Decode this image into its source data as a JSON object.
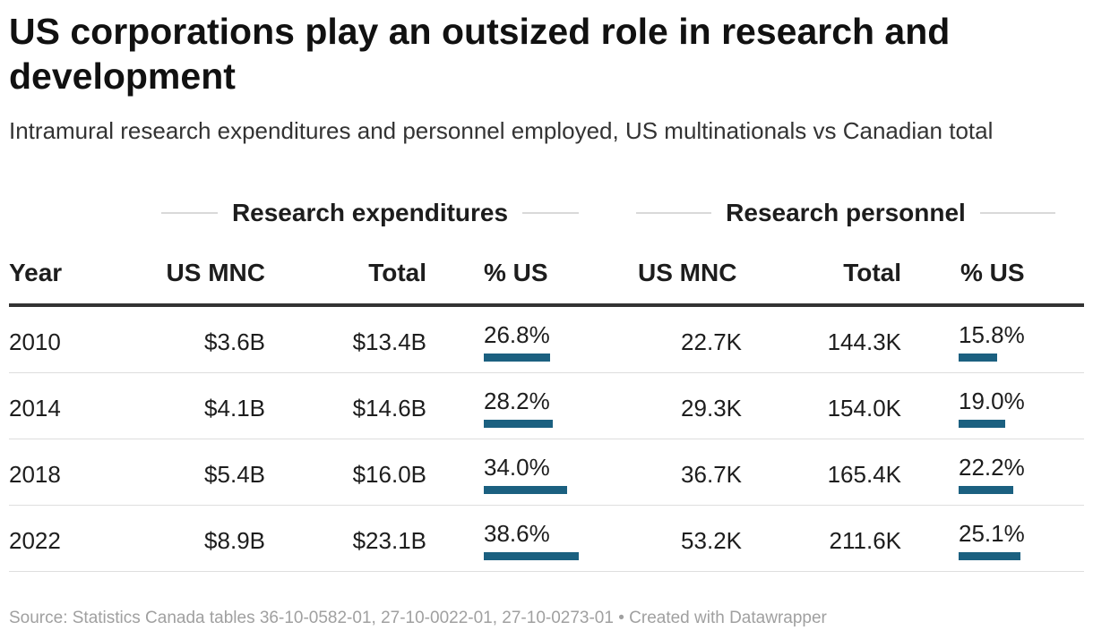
{
  "title": "US corporations play an outsized role in research and development",
  "subtitle": "Intramural research expenditures and personnel employed, US multinationals vs Canadian total",
  "groups": {
    "expenditures": "Research expenditures",
    "personnel": "Research personnel"
  },
  "columns": {
    "year": "Year",
    "exp_us": "US MNC",
    "exp_total": "Total",
    "exp_pct": "% US",
    "per_us": "US MNC",
    "per_total": "Total",
    "per_pct": "% US"
  },
  "colors": {
    "bar": "#1b6080",
    "header_rule": "#333333"
  },
  "chart_data": {
    "type": "table",
    "title": "US corporations play an outsized role in research and development",
    "subtitle": "Intramural research expenditures and personnel employed, US multinationals vs Canadian total",
    "bar_max_pct": 38.6,
    "rows": [
      {
        "year": "2010",
        "exp_us": "$3.6B",
        "exp_total": "$13.4B",
        "exp_pct": "26.8%",
        "exp_pct_value": 26.8,
        "per_us": "22.7K",
        "per_total": "144.3K",
        "per_pct": "15.8%",
        "per_pct_value": 15.8
      },
      {
        "year": "2014",
        "exp_us": "$4.1B",
        "exp_total": "$14.6B",
        "exp_pct": "28.2%",
        "exp_pct_value": 28.2,
        "per_us": "29.3K",
        "per_total": "154.0K",
        "per_pct": "19.0%",
        "per_pct_value": 19.0
      },
      {
        "year": "2018",
        "exp_us": "$5.4B",
        "exp_total": "$16.0B",
        "exp_pct": "34.0%",
        "exp_pct_value": 34.0,
        "per_us": "36.7K",
        "per_total": "165.4K",
        "per_pct": "22.2%",
        "per_pct_value": 22.2
      },
      {
        "year": "2022",
        "exp_us": "$8.9B",
        "exp_total": "$23.1B",
        "exp_pct": "38.6%",
        "exp_pct_value": 38.6,
        "per_us": "53.2K",
        "per_total": "211.6K",
        "per_pct": "25.1%",
        "per_pct_value": 25.1
      }
    ]
  },
  "footer": "Source: Statistics Canada tables 36-10-0582-01, 27-10-0022-01, 27-10-0273-01 • Created with Datawrapper"
}
